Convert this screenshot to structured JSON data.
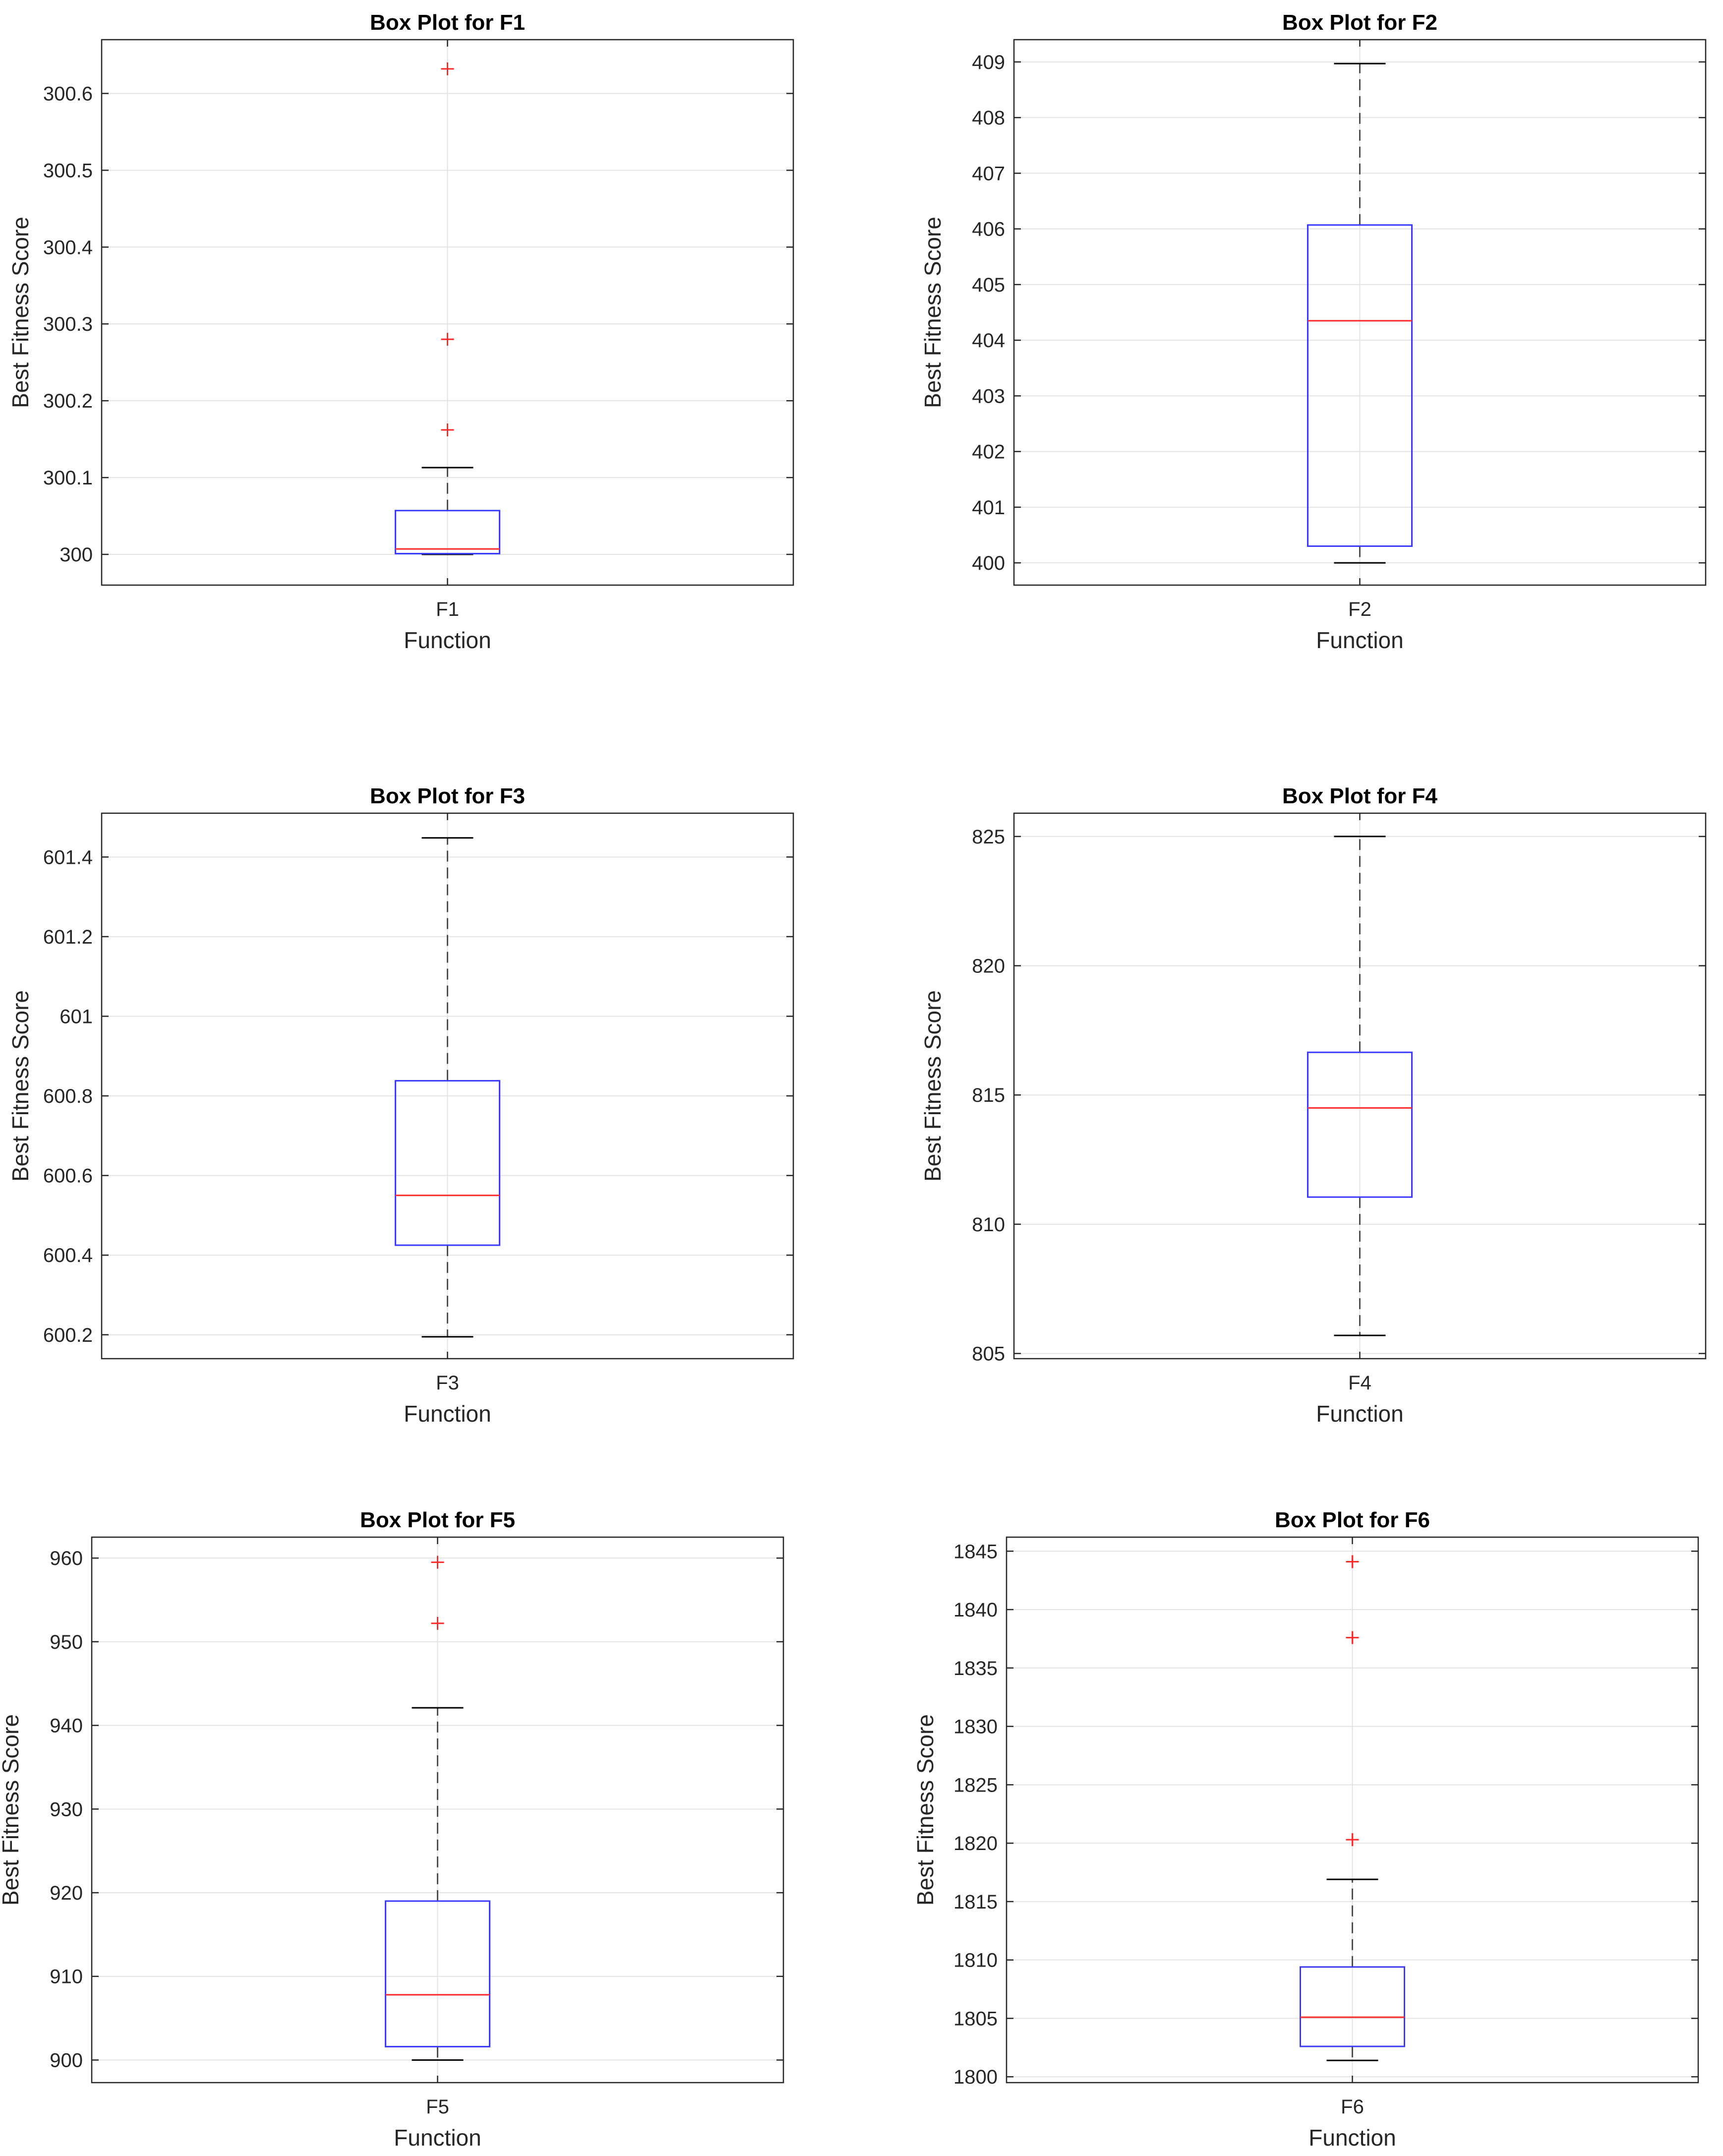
{
  "figure": {
    "colors": {
      "box": "#3b3bff",
      "median": "#ff2a2a",
      "outlier": "#ff2a2a",
      "whisker": "#505050",
      "grid": "#e3e3e3",
      "axes": "#262626",
      "background": "#ffffff"
    }
  },
  "chart_data": [
    {
      "type": "box",
      "title": "Box Plot for F1",
      "xlabel": "Function",
      "ylabel": "Best Fitness Score",
      "category": "F1",
      "ylim": [
        299.96,
        300.67
      ],
      "yticks": [
        300,
        300.1,
        300.2,
        300.3,
        300.4,
        300.5,
        300.6
      ],
      "ytick_labels": [
        "300",
        "300.1",
        "300.2",
        "300.3",
        "300.4",
        "300.5",
        "300.6"
      ],
      "whisker_low": 300.0,
      "q1": 300.001,
      "median": 300.007,
      "q3": 300.057,
      "whisker_high": 300.113,
      "outliers": [
        300.162,
        300.28,
        300.632
      ],
      "grid": true
    },
    {
      "type": "box",
      "title": "Box Plot for F2",
      "xlabel": "Function",
      "ylabel": "Best Fitness Score",
      "category": "F2",
      "ylim": [
        399.6,
        409.4
      ],
      "yticks": [
        400,
        401,
        402,
        403,
        404,
        405,
        406,
        407,
        408,
        409
      ],
      "ytick_labels": [
        "400",
        "401",
        "402",
        "403",
        "404",
        "405",
        "406",
        "407",
        "408",
        "409"
      ],
      "whisker_low": 400.0,
      "q1": 400.3,
      "median": 404.35,
      "q3": 406.07,
      "whisker_high": 408.97,
      "outliers": [],
      "grid": true
    },
    {
      "type": "box",
      "title": "Box Plot for F3",
      "xlabel": "Function",
      "ylabel": "Best Fitness Score",
      "category": "F3",
      "ylim": [
        600.14,
        601.51
      ],
      "yticks": [
        600.2,
        600.4,
        600.6,
        600.8,
        601,
        601.2,
        601.4
      ],
      "ytick_labels": [
        "600.2",
        "600.4",
        "600.6",
        "600.8",
        "601",
        "601.2",
        "601.4"
      ],
      "whisker_low": 600.195,
      "q1": 600.425,
      "median": 600.55,
      "q3": 600.838,
      "whisker_high": 601.448,
      "outliers": [],
      "grid": true
    },
    {
      "type": "box",
      "title": "Box Plot for F4",
      "xlabel": "Function",
      "ylabel": "Best Fitness Score",
      "category": "F4",
      "ylim": [
        804.8,
        825.9
      ],
      "yticks": [
        805,
        810,
        815,
        820,
        825
      ],
      "ytick_labels": [
        "805",
        "810",
        "815",
        "820",
        "825"
      ],
      "whisker_low": 805.7,
      "q1": 811.05,
      "median": 814.5,
      "q3": 816.65,
      "whisker_high": 825.0,
      "outliers": [],
      "grid": true
    },
    {
      "type": "box",
      "title": "Box Plot for F5",
      "xlabel": "Function",
      "ylabel": "Best Fitness Score",
      "category": "F5",
      "ylim": [
        897.3,
        962.5
      ],
      "yticks": [
        900,
        910,
        920,
        930,
        940,
        950,
        960
      ],
      "ytick_labels": [
        "900",
        "910",
        "920",
        "930",
        "940",
        "950",
        "960"
      ],
      "whisker_low": 900.0,
      "q1": 901.6,
      "median": 907.8,
      "q3": 919.0,
      "whisker_high": 942.1,
      "outliers": [
        952.2,
        959.5
      ],
      "grid": true
    },
    {
      "type": "box",
      "title": "Box Plot for F6",
      "xlabel": "Function",
      "ylabel": "Best Fitness Score",
      "category": "F6",
      "ylim": [
        1799.5,
        1846.2
      ],
      "yticks": [
        1800,
        1805,
        1810,
        1815,
        1820,
        1825,
        1830,
        1835,
        1840,
        1845
      ],
      "ytick_labels": [
        "1800",
        "1805",
        "1810",
        "1815",
        "1820",
        "1825",
        "1830",
        "1835",
        "1840",
        "1845"
      ],
      "whisker_low": 1801.4,
      "q1": 1802.6,
      "median": 1805.1,
      "q3": 1809.4,
      "whisker_high": 1816.9,
      "outliers": [
        1820.3,
        1837.6,
        1844.1
      ],
      "grid": true
    }
  ]
}
